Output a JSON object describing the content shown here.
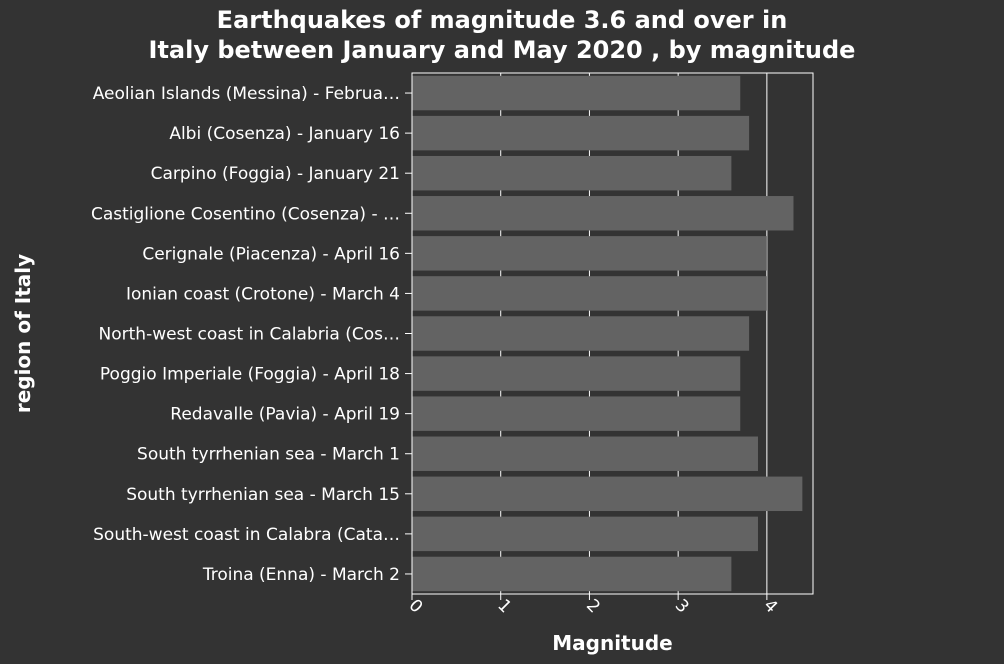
{
  "chart_data": {
    "type": "bar",
    "orientation": "horizontal",
    "title_lines": [
      "Earthquakes of magnitude 3.6 and over in",
      "Italy between January and May 2020 , by magnitude"
    ],
    "xlabel": "Magnitude",
    "ylabel": "region of Italy",
    "categories": [
      "Aeolian Islands (Messina) - Februa…",
      "Albi (Cosenza) - January 16",
      "Carpino (Foggia) - January 21",
      "Castiglione Cosentino (Cosenza) - …",
      "Cerignale (Piacenza) - April 16",
      "Ionian coast (Crotone) - March 4",
      "North-west coast in Calabria (Cos…",
      "Poggio Imperiale (Foggia) - April 18",
      "Redavalle (Pavia) - April 19",
      "South tyrrhenian sea - March 1",
      "South tyrrhenian sea - March 15",
      "South-west coast in Calabra (Cata…",
      "Troina (Enna) - March 2"
    ],
    "values": [
      3.7,
      3.8,
      3.6,
      4.3,
      4.0,
      4.0,
      3.8,
      3.7,
      3.7,
      3.9,
      4.4,
      3.9,
      3.6
    ],
    "xlim": [
      0,
      4.52
    ],
    "xticks": [
      "0",
      "1",
      "2",
      "3",
      "4"
    ],
    "grid": "vertical",
    "legend": "none",
    "colors": {
      "background": "#333333",
      "bar": "#636363",
      "text": "#ffffff",
      "axis": "#ffffff",
      "grid": "#ffffff"
    }
  }
}
